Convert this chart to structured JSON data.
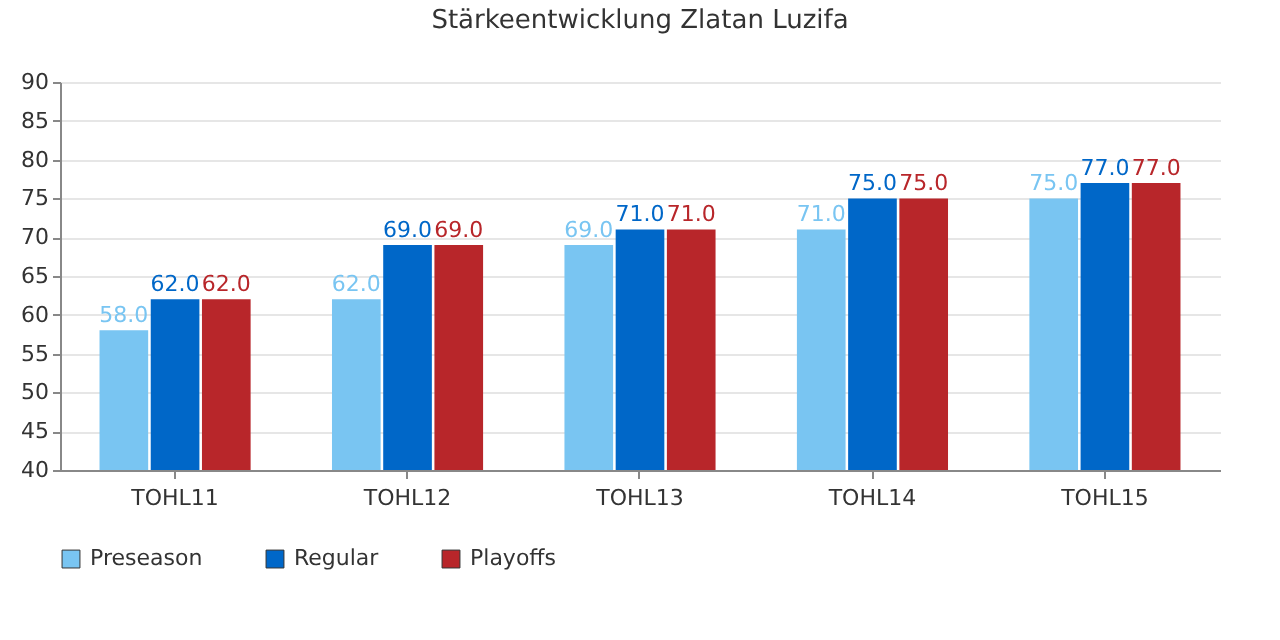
{
  "chart_data": {
    "type": "bar",
    "title": "Stärkeentwicklung Zlatan Luzifa",
    "categories": [
      "TOHL11",
      "TOHL12",
      "TOHL13",
      "TOHL14",
      "TOHL15"
    ],
    "series": [
      {
        "name": "Preseason",
        "color": "#79c5f2",
        "values": [
          58,
          62,
          69,
          71,
          75
        ],
        "value_labels": [
          "58.0",
          "62.0",
          "69.0",
          "71.0",
          "75.0"
        ]
      },
      {
        "name": "Regular",
        "color": "#0067c8",
        "values": [
          62,
          69,
          71,
          75,
          77
        ],
        "value_labels": [
          "62.0",
          "69.0",
          "71.0",
          "75.0",
          "77.0"
        ]
      },
      {
        "name": "Playoffs",
        "color": "#b8262a",
        "values": [
          62,
          69,
          71,
          75,
          77
        ],
        "value_labels": [
          "62.0",
          "69.0",
          "71.0",
          "75.0",
          "77.0"
        ]
      }
    ],
    "ylim": [
      40,
      90
    ],
    "yticks": [
      40,
      45,
      50,
      55,
      60,
      65,
      70,
      75,
      80,
      85,
      90
    ],
    "grid": "y",
    "legend": "bottom"
  }
}
